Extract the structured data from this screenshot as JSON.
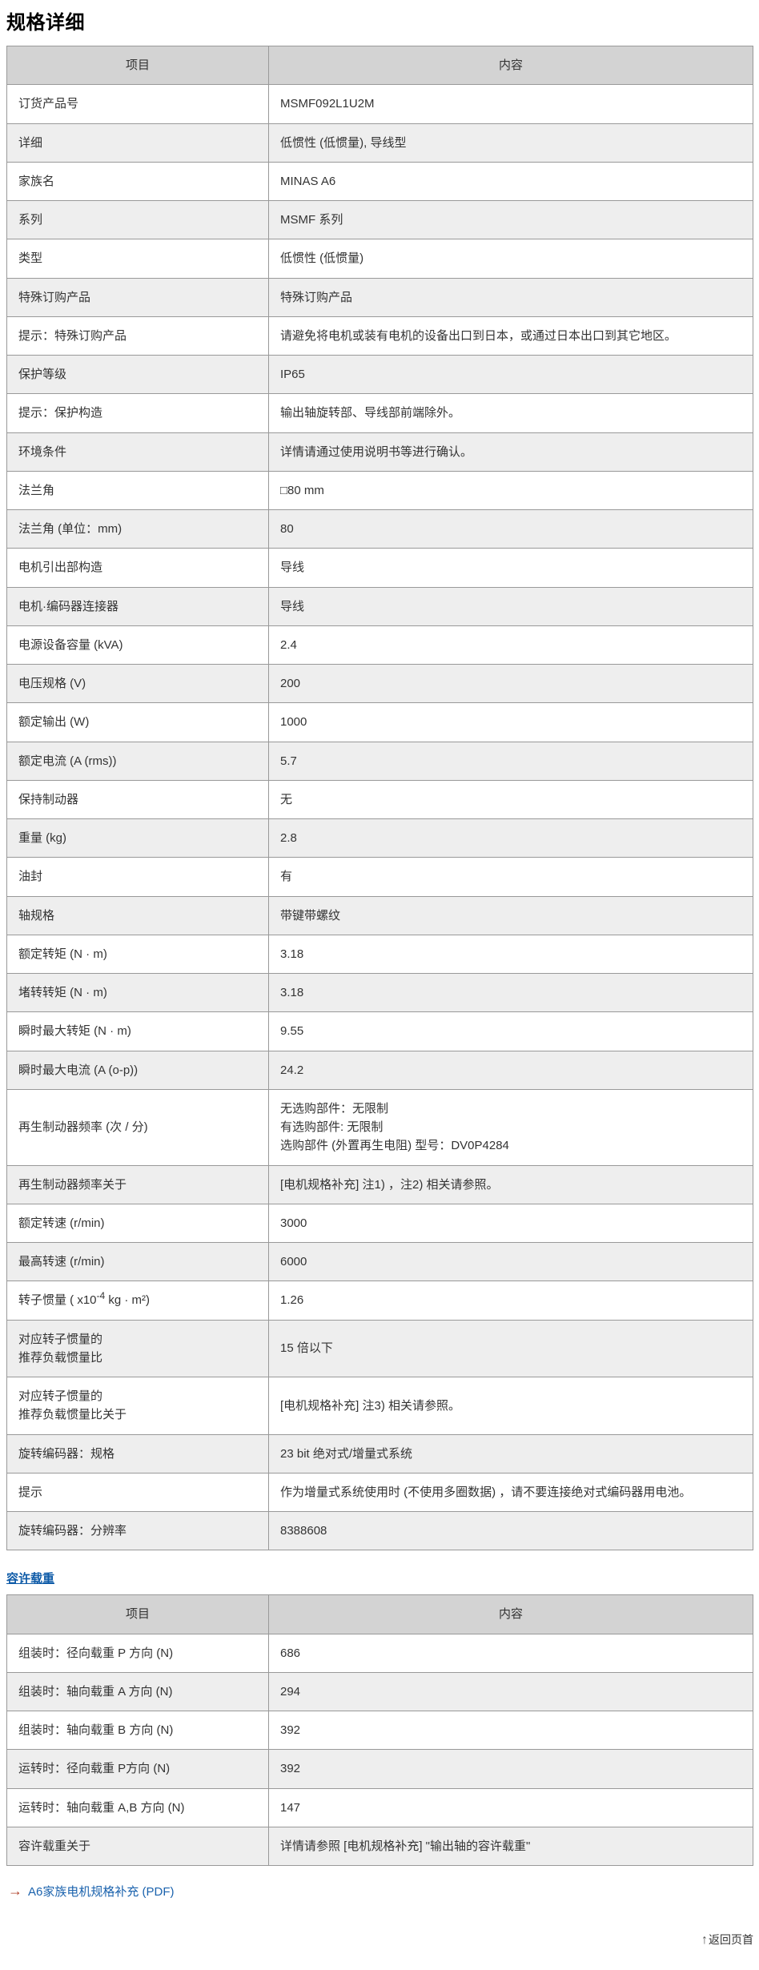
{
  "page": {
    "title": "规格详细"
  },
  "colors": {
    "header_bg": "#d3d3d3",
    "row_alt_bg": "#eeeeee",
    "border": "#999999",
    "text": "#333333",
    "section_heading_link": "#0d5aa7",
    "pdf_link": "#1a62ad",
    "arrow_orange": "#b0402a"
  },
  "spec_table": {
    "header": {
      "item": "项目",
      "content": "内容"
    },
    "rows": [
      {
        "label": "订货产品号",
        "value": "MSMF092L1U2M"
      },
      {
        "label": "详细",
        "value": "低惯性 (低惯量), 导线型"
      },
      {
        "label": "家族名",
        "value": "MINAS A6"
      },
      {
        "label": "系列",
        "value": "MSMF 系列"
      },
      {
        "label": "类型",
        "value": "低惯性 (低惯量)"
      },
      {
        "label": "特殊订购产品",
        "value": "特殊订购产品"
      },
      {
        "label": "提示：特殊订购产品",
        "value": "请避免将电机或装有电机的设备出口到日本，或通过日本出口到其它地区。"
      },
      {
        "label": "保护等级",
        "value": "IP65"
      },
      {
        "label": "提示：保护构造",
        "value": "输出轴旋转部、导线部前端除外。"
      },
      {
        "label": "环境条件",
        "value": "详情请通过使用说明书等进行确认。"
      },
      {
        "label": "法兰角",
        "value": "□80 mm"
      },
      {
        "label": "法兰角 (单位：mm)",
        "value": "80"
      },
      {
        "label": "电机引出部构造",
        "value": "导线"
      },
      {
        "label": "电机·编码器连接器",
        "value": "导线"
      },
      {
        "label": "电源设备容量 (kVA)",
        "value": "2.4"
      },
      {
        "label": "电压规格 (V)",
        "value": "200"
      },
      {
        "label": "额定输出 (W)",
        "value": "1000"
      },
      {
        "label": "额定电流 (A (rms))",
        "value": "5.7"
      },
      {
        "label": "保持制动器",
        "value": "无"
      },
      {
        "label": "重量 (kg)",
        "value": "2.8"
      },
      {
        "label": "油封",
        "value": "有"
      },
      {
        "label": "轴规格",
        "value": "带键带螺纹"
      },
      {
        "label": "额定转矩 (N · m)",
        "value": "3.18"
      },
      {
        "label": "堵转转矩 (N · m)",
        "value": "3.18"
      },
      {
        "label": "瞬时最大转矩 (N · m)",
        "value": "9.55"
      },
      {
        "label": "瞬时最大电流 (A (o-p))",
        "value": "24.2"
      },
      {
        "label": "再生制动器频率 (次 / 分)",
        "value": "无选购部件：无限制\n有选购部件: 无限制\n选购部件 (外置再生电阻) 型号：DV0P4284"
      },
      {
        "label": "再生制动器频率关于",
        "value": "[电机规格补充] 注1) ，注2) 相关请参照。"
      },
      {
        "label": "额定转速 (r/min)",
        "value": "3000"
      },
      {
        "label": "最高转速 (r/min)",
        "value": "6000"
      },
      {
        "label_pre": "转子惯量 ( x10",
        "label_sup": "-4",
        "label_post": " kg · m²)",
        "value": "1.26"
      },
      {
        "label": "对应转子惯量的\n推荐负载惯量比",
        "value": "15 倍以下"
      },
      {
        "label": "对应转子惯量的\n推荐负载惯量比关于",
        "value": "[电机规格补充] 注3) 相关请参照。"
      },
      {
        "label": "旋转编码器：规格",
        "value": "23 bit 绝对式/增量式系统"
      },
      {
        "label": "提示",
        "value": "作为增量式系统使用时 (不使用多圈数据) ，请不要连接绝对式编码器用电池。"
      },
      {
        "label": "旋转编码器：分辨率",
        "value": "8388608"
      }
    ]
  },
  "load_section": {
    "heading": "容许载重",
    "header": {
      "item": "项目",
      "content": "内容"
    },
    "rows": [
      {
        "label": "组装时：径向载重 P 方向 (N)",
        "value": "686"
      },
      {
        "label": "组装时：轴向载重 A 方向 (N)",
        "value": "294"
      },
      {
        "label": "组装时：轴向载重 B 方向 (N)",
        "value": "392"
      },
      {
        "label": "运转时：径向载重 P方向 (N)",
        "value": "392"
      },
      {
        "label": "运转时：轴向载重 A,B 方向 (N)",
        "value": "147"
      },
      {
        "label": "容许载重关于",
        "value": "详情请参照 [电机规格补充] \"输出轴的容许载重\""
      }
    ]
  },
  "footer": {
    "pdf_link_arrow": "→",
    "pdf_link_label": "A6家族电机规格补充 (PDF)",
    "back_to_top_arrow": "↑",
    "back_to_top_label": "返回页首"
  }
}
